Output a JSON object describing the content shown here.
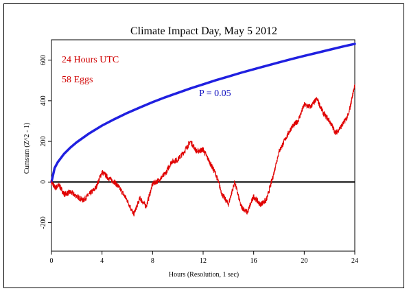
{
  "chart_data": {
    "type": "line",
    "title": "Climate Impact Day, May 5 2012",
    "xlabel": "Hours (Resolution, 1 sec)",
    "ylabel": "Cumsum (Z^2 - 1)",
    "xlim": [
      0,
      24
    ],
    "ylim": [
      -340,
      700
    ],
    "xticks": [
      0,
      4,
      8,
      12,
      16,
      20,
      24
    ],
    "yticks": [
      -200,
      0,
      200,
      400,
      600
    ],
    "grid": false,
    "annotations": [
      "24 Hours UTC",
      "58 Eggs",
      "P = 0.05"
    ],
    "colors": {
      "data": "#e00000",
      "probability": "#2020e0",
      "zero": "#000000"
    },
    "series": [
      {
        "role": "cumulative deviation",
        "x": [
          0,
          0.3,
          0.6,
          1.0,
          1.5,
          2.0,
          2.5,
          3.0,
          3.5,
          4.0,
          4.5,
          5.0,
          5.5,
          6.0,
          6.5,
          7.0,
          7.5,
          8.0,
          8.5,
          9.0,
          9.5,
          10.0,
          10.5,
          11.0,
          11.5,
          12.0,
          12.5,
          13.0,
          13.5,
          14.0,
          14.5,
          15.0,
          15.5,
          16.0,
          16.5,
          17.0,
          17.5,
          18.0,
          18.5,
          19.0,
          19.5,
          20.0,
          20.5,
          21.0,
          21.5,
          22.0,
          22.5,
          23.0,
          23.5,
          24.0
        ],
        "y": [
          0,
          -30,
          -15,
          -60,
          -50,
          -70,
          -90,
          -60,
          -30,
          50,
          20,
          0,
          -40,
          -90,
          -160,
          -80,
          -120,
          -10,
          10,
          40,
          100,
          110,
          150,
          200,
          150,
          160,
          100,
          40,
          -60,
          -110,
          0,
          -120,
          -150,
          -70,
          -110,
          -90,
          20,
          150,
          210,
          270,
          300,
          380,
          370,
          410,
          340,
          300,
          240,
          280,
          330,
          480
        ]
      },
      {
        "role": "p=0.05 envelope",
        "x": [
          0,
          0.25,
          0.5,
          1,
          1.5,
          2,
          3,
          4,
          5,
          6,
          7,
          8,
          9,
          10,
          11,
          12,
          13,
          14,
          15,
          16,
          17,
          18,
          19,
          20,
          21,
          22,
          23,
          24
        ],
        "y": [
          0,
          69,
          98,
          139,
          170,
          196,
          240,
          278,
          310,
          340,
          367,
          393,
          417,
          439,
          461,
          481,
          501,
          519,
          538,
          555,
          572,
          589,
          605,
          621,
          636,
          651,
          666,
          680
        ]
      }
    ]
  }
}
